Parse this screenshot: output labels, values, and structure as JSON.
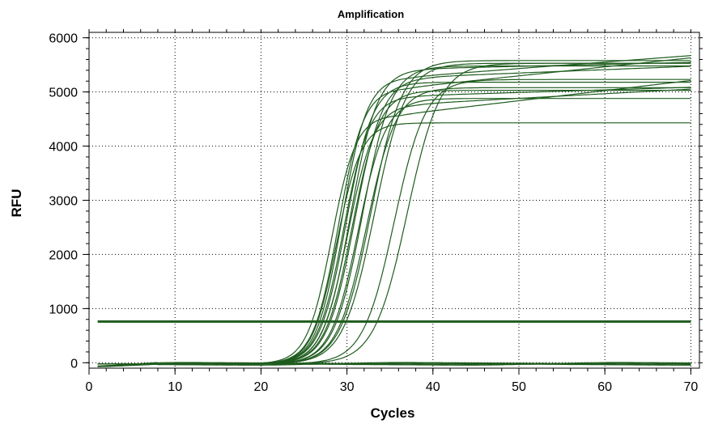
{
  "chart_data": {
    "type": "line",
    "title": "Amplification",
    "xlabel": "Cycles",
    "ylabel": "RFU",
    "xlim": [
      0,
      71
    ],
    "ylim": [
      -100,
      6100
    ],
    "x_ticks": [
      0,
      10,
      20,
      30,
      40,
      50,
      60,
      70
    ],
    "y_ticks": [
      0,
      1000,
      2000,
      3000,
      4000,
      5000,
      6000
    ],
    "grid": true,
    "legend": "none",
    "line_color": "#1f5c1f",
    "threshold": 760,
    "x_range": [
      1,
      70
    ],
    "baseline_series_count": 6,
    "series": [
      {
        "midpoint": 28.2,
        "slope": 0.7,
        "plateau": 4600,
        "drift": 800
      },
      {
        "midpoint": 28.8,
        "slope": 0.7,
        "plateau": 4450,
        "drift": 0
      },
      {
        "midpoint": 29.0,
        "slope": 0.68,
        "plateau": 5100,
        "drift": 700
      },
      {
        "midpoint": 29.4,
        "slope": 0.68,
        "plateau": 5300,
        "drift": 500
      },
      {
        "midpoint": 29.6,
        "slope": 0.66,
        "plateau": 4950,
        "drift": 200
      },
      {
        "midpoint": 29.9,
        "slope": 0.65,
        "plateau": 5200,
        "drift": 0
      },
      {
        "midpoint": 30.1,
        "slope": 0.65,
        "plateau": 4800,
        "drift": 350
      },
      {
        "midpoint": 30.4,
        "slope": 0.64,
        "plateau": 5450,
        "drift": 150
      },
      {
        "midpoint": 30.6,
        "slope": 0.63,
        "plateau": 5050,
        "drift": 0
      },
      {
        "midpoint": 30.9,
        "slope": 0.62,
        "plateau": 5300,
        "drift": 250
      },
      {
        "midpoint": 31.3,
        "slope": 0.62,
        "plateau": 4900,
        "drift": 0
      },
      {
        "midpoint": 31.8,
        "slope": 0.6,
        "plateau": 5500,
        "drift": 0
      },
      {
        "midpoint": 32.3,
        "slope": 0.58,
        "plateau": 5100,
        "drift": 0
      },
      {
        "midpoint": 32.8,
        "slope": 0.56,
        "plateau": 5600,
        "drift": 0
      },
      {
        "midpoint": 33.2,
        "slope": 0.55,
        "plateau": 5550,
        "drift": 0
      },
      {
        "midpoint": 35.5,
        "slope": 0.55,
        "plateau": 5250,
        "drift": 0
      },
      {
        "midpoint": 37.0,
        "slope": 0.52,
        "plateau": 5550,
        "drift": 0
      }
    ]
  }
}
